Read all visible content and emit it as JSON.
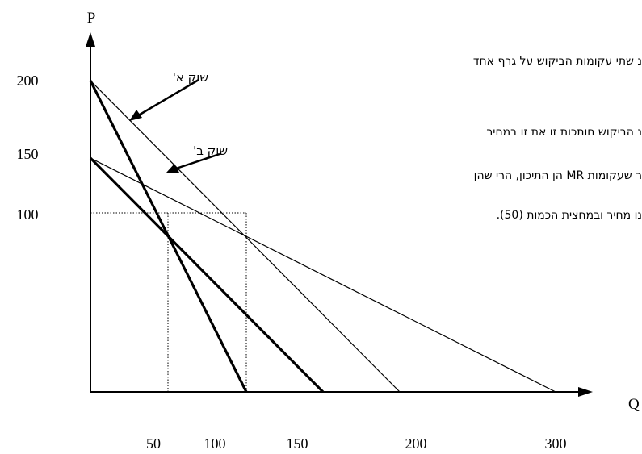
{
  "chart_data": {
    "type": "line",
    "xlabel": "Q",
    "ylabel": "P",
    "xlim": [
      0,
      320
    ],
    "ylim": [
      0,
      220
    ],
    "x_ticks": [
      "50",
      "100",
      "150",
      "200",
      "300"
    ],
    "y_ticks": [
      "200",
      "150",
      "100"
    ],
    "series": [
      {
        "id": "demand-a",
        "name": "שוק א'",
        "points": [
          [
            0,
            200
          ],
          [
            200,
            0
          ]
        ],
        "bold": false
      },
      {
        "id": "mr-a",
        "points": [
          [
            0,
            200
          ],
          [
            100,
            0
          ]
        ],
        "bold": true
      },
      {
        "id": "demand-b",
        "name": "שוק ב'",
        "points": [
          [
            0,
            150
          ],
          [
            300,
            0
          ]
        ],
        "bold": false
      },
      {
        "id": "mr-b",
        "points": [
          [
            0,
            150
          ],
          [
            150,
            0
          ]
        ],
        "bold": true
      }
    ],
    "reference_points": [
      [
        50,
        100
      ],
      [
        100,
        100
      ]
    ],
    "annotations": {
      "market_a": "שוק א'",
      "market_b": "שוק ב'"
    },
    "text_lines": [
      "נ שתי עקומות הביקוש על גרף אחד",
      "נ הביקוש חותכות זו את זו במחיר",
      "ר שעקומות MR הן התיכון, הרי שהן",
      "נו מחיר ובמחצית הכמות (50)."
    ]
  }
}
